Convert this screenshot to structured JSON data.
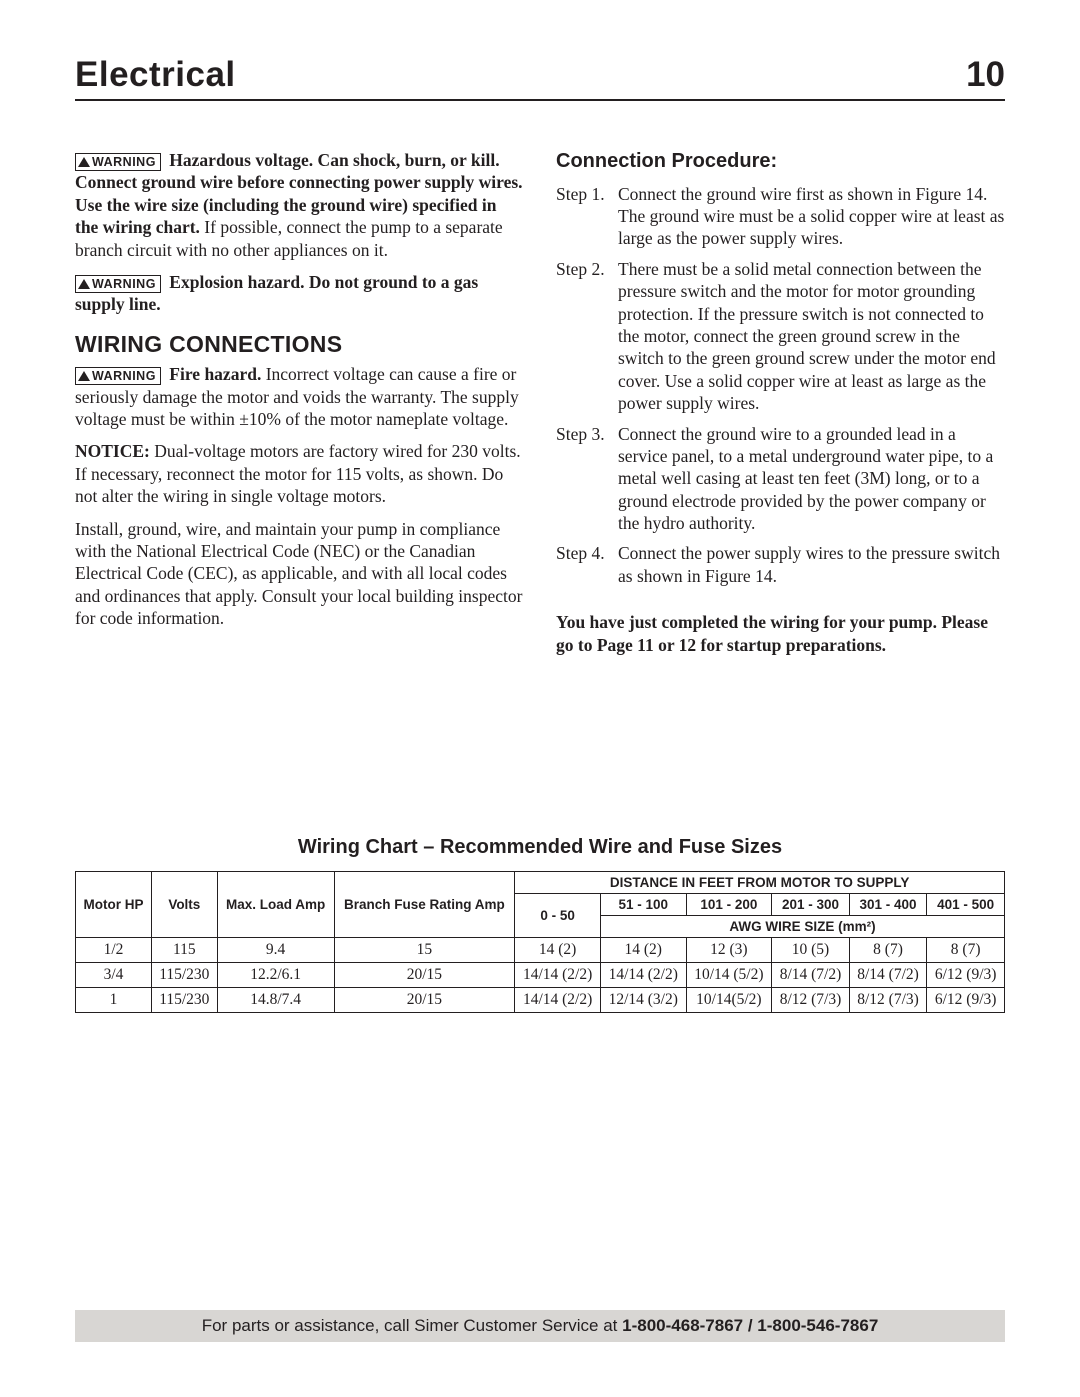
{
  "header": {
    "title": "Electrical",
    "page_number": "10"
  },
  "left_column": {
    "p1_bold": "Hazardous voltage. Can shock, burn, or kill. Connect ground wire before connecting power supply wires. Use the wire size (including the ground wire) specified in the wiring chart.",
    "p1_rest": " If possible, connect the pump to a separate branch circuit with no other appliances on it.",
    "p2_bold": "Explosion hazard. Do not ground to a gas supply line.",
    "wiring_heading": "WIRING CONNECTIONS",
    "p3_bold": "Fire hazard.",
    "p3_rest": " Incorrect voltage can cause a fire or seriously damage the motor and voids the warranty. The supply voltage must be within ±10% of the motor nameplate voltage.",
    "notice_label": "NOTICE:",
    "notice_rest": " Dual-voltage motors are factory wired for 230 volts. If necessary, reconnect the motor for 115 volts, as shown. Do not alter the wiring in single voltage motors.",
    "p4": "Install, ground, wire, and maintain your pump in compliance with the National Electrical Code (NEC) or the Canadian Electrical Code (CEC), as applicable, and with all local codes and ordinances that apply. Consult your local building inspector for code information."
  },
  "right_column": {
    "heading": "Connection Procedure:",
    "steps": [
      {
        "label": "Step 1.",
        "body": "Connect the ground wire first as shown in Figure 14. The ground wire must be a solid copper wire at least as large as the power supply wires."
      },
      {
        "label": "Step 2.",
        "body": "There must be a solid metal connection between the pressure switch and the motor for motor grounding protection. If the pressure switch is not connected to the motor, connect the green ground screw in the switch to the green ground screw under the motor end cover. Use a solid copper wire at least as large as the power supply wires."
      },
      {
        "label": "Step 3.",
        "body": "Connect the ground wire to a grounded lead in a service panel, to a metal underground water pipe, to a metal well casing at least ten feet (3M) long, or to a ground electrode provided by the power company or the hydro authority."
      },
      {
        "label": "Step 4.",
        "body": "Connect the power supply wires to the pressure switch as shown in Figure 14."
      }
    ],
    "closing": "You have just completed the wiring for your pump. Please go to Page 11 or 12 for startup preparations."
  },
  "warning_label": "WARNING",
  "chart": {
    "title": "Wiring Chart – Recommended Wire and Fuse Sizes",
    "top_header": "DISTANCE IN FEET FROM MOTOR TO SUPPLY",
    "sub_header": "AWG WIRE SIZE (mm²)",
    "col_labels": {
      "hp": "Motor HP",
      "volts": "Volts",
      "maxload": "Max. Load Amp",
      "fuse": "Branch Fuse Rating Amp"
    },
    "dist_ranges": [
      "0 - 50",
      "51 - 100",
      "101 - 200",
      "201 - 300",
      "301 - 400",
      "401 - 500"
    ],
    "rows": [
      {
        "hp": "1/2",
        "volts": "115",
        "maxload": "9.4",
        "fuse": "15",
        "cells": [
          "14 (2)",
          "14 (2)",
          "12 (3)",
          "10 (5)",
          "8 (7)",
          "8 (7)"
        ]
      },
      {
        "hp": "3/4",
        "volts": "115/230",
        "maxload": "12.2/6.1",
        "fuse": "20/15",
        "cells": [
          "14/14 (2/2)",
          "14/14 (2/2)",
          "10/14 (5/2)",
          "8/14 (7/2)",
          "8/14 (7/2)",
          "6/12 (9/3)"
        ]
      },
      {
        "hp": "1",
        "volts": "115/230",
        "maxload": "14.8/7.4",
        "fuse": "20/15",
        "cells": [
          "14/14 (2/2)",
          "12/14 (3/2)",
          "10/14(5/2)",
          "8/12 (7/3)",
          "8/12 (7/3)",
          "6/12 (9/3)"
        ]
      }
    ]
  },
  "footer": {
    "prefix": "For parts or assistance, call Simer Customer Service at ",
    "phones": "1-800-468-7867 / 1-800-546-7867"
  }
}
